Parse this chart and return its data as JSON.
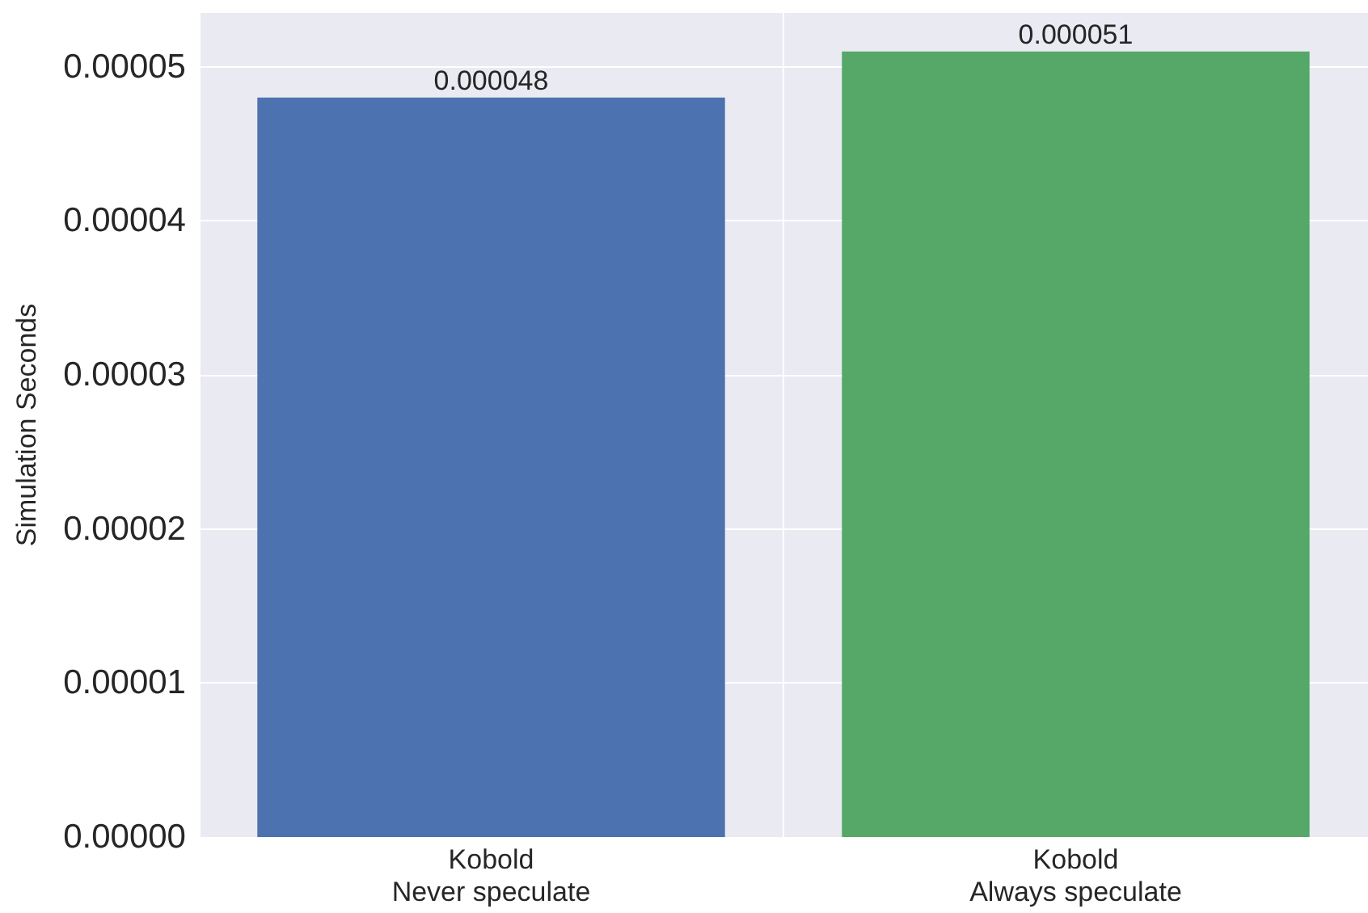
{
  "chart_data": {
    "type": "bar",
    "ylabel": "Simulation Seconds",
    "categories": [
      "Kobold\nNever speculate",
      "Kobold\nAlways speculate"
    ],
    "values": [
      4.8e-05,
      5.1e-05
    ],
    "colors": [
      "#4c72b0",
      "#55a868"
    ],
    "ylim": [
      0,
      5.35e-05
    ],
    "yticks": [
      {
        "value": 0,
        "label": "0.00000"
      },
      {
        "value": 1e-05,
        "label": "0.00001"
      },
      {
        "value": 2e-05,
        "label": "0.00002"
      },
      {
        "value": 3e-05,
        "label": "0.00003"
      },
      {
        "value": 4e-05,
        "label": "0.00004"
      },
      {
        "value": 5e-05,
        "label": "0.00005"
      }
    ],
    "value_labels": [
      "0.000048",
      "0.000051"
    ],
    "grid": true
  }
}
